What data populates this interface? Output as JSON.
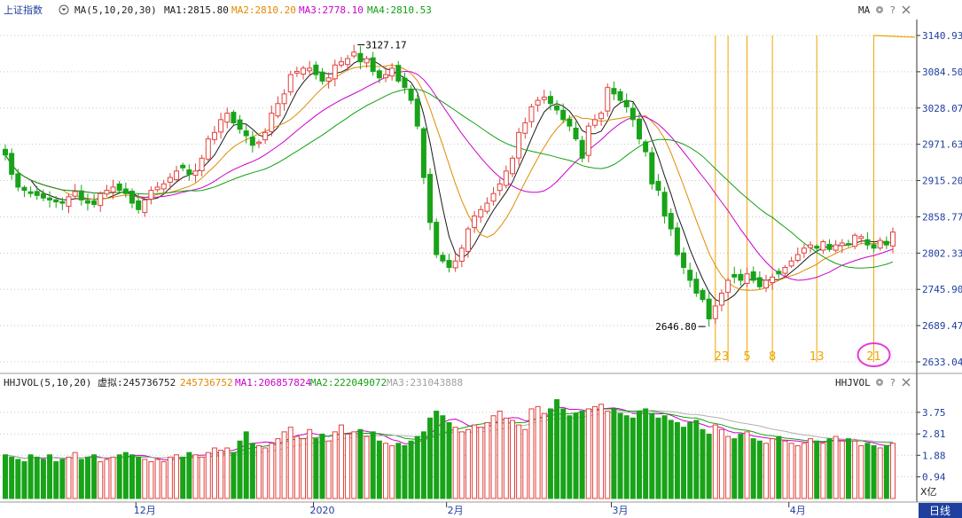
{
  "colors": {
    "up": "#e0413c",
    "down": "#18a318",
    "ma1": "#1a1a1a",
    "ma2": "#e08a00",
    "ma3": "#cc00cc",
    "ma4": "#14a014",
    "vma1": "#cc00cc",
    "vma2": "#14a014",
    "vma3": "#b0b0b0",
    "fib": "#f0a400",
    "grid": "#c8c8c8",
    "label": "#1f3f9f",
    "axis": "#333333",
    "highlight": "#e63ad6",
    "timeframe_bg": "#1f3f9f"
  },
  "header": {
    "index_name": "上证指数",
    "indicator": "MA(5,10,20,30)",
    "ma1": "MA1:2815.80",
    "ma2": "MA2:2810.20",
    "ma3": "MA3:2778.10",
    "ma4": "MA4:2810.53",
    "right_tag": "MA"
  },
  "vol_header": {
    "indicator": "HHJVOL(5,10,20)",
    "virtual_label": "虚拟:245736752",
    "virtual_value": "245736752",
    "ma1": "MA1:206857824",
    "ma2": "MA2:222049072",
    "ma3": "MA3:231043888",
    "right_tag": "HHJVOL"
  },
  "icons": [
    "dropdown-icon",
    "gear-icon",
    "question-icon",
    "close-icon"
  ],
  "timeframe": "日线",
  "unit": "X亿",
  "annotations": {
    "high": "3127.17",
    "low": "2646.80"
  },
  "fib_labels": [
    "23",
    "5",
    "8",
    "13",
    "21"
  ],
  "chart_data": [
    {
      "type": "candlestick",
      "title": "上证指数",
      "x_labels": [
        {
          "index": 22,
          "label": "12月"
        },
        {
          "index": 50,
          "label": "2020"
        },
        {
          "index": 71,
          "label": "2月"
        },
        {
          "index": 97,
          "label": "3月"
        },
        {
          "index": 125,
          "label": "4月"
        }
      ],
      "y_ticks": [
        3140.93,
        3084.5,
        3028.07,
        2971.63,
        2915.2,
        2858.77,
        2802.33,
        2745.9,
        2689.47,
        2633.04
      ],
      "ylim": [
        2633.04,
        3140.93
      ],
      "fib_line_indices": [
        112,
        114,
        117,
        121,
        128,
        137
      ],
      "fib_text_indices": [
        113,
        117,
        121,
        128,
        137
      ],
      "closes": [
        2955,
        2925,
        2905,
        2900,
        2895,
        2892,
        2888,
        2885,
        2882,
        2880,
        2890,
        2898,
        2885,
        2880,
        2878,
        2895,
        2900,
        2905,
        2900,
        2895,
        2880,
        2870,
        2885,
        2900,
        2905,
        2910,
        2920,
        2930,
        2935,
        2925,
        2930,
        2950,
        2980,
        2990,
        3010,
        3020,
        3005,
        2995,
        2985,
        2970,
        2975,
        2990,
        3020,
        3035,
        3050,
        3080,
        3085,
        3090,
        3090,
        3080,
        3070,
        3075,
        3095,
        3100,
        3105,
        3115,
        3100,
        3105,
        3085,
        3075,
        3080,
        3090,
        3070,
        3060,
        3040,
        3000,
        2920,
        2850,
        2800,
        2790,
        2780,
        2790,
        2810,
        2840,
        2860,
        2870,
        2880,
        2895,
        2910,
        2930,
        2950,
        2990,
        3005,
        3030,
        3040,
        3045,
        3035,
        3025,
        3010,
        3000,
        2980,
        2950,
        3000,
        3010,
        3020,
        3060,
        3050,
        3040,
        3030,
        3010,
        2980,
        2960,
        2910,
        2900,
        2860,
        2840,
        2800,
        2780,
        2760,
        2740,
        2730,
        2700,
        2720,
        2740,
        2760,
        2765,
        2760,
        2770,
        2760,
        2750,
        2760,
        2765,
        2770,
        2780,
        2790,
        2800,
        2810,
        2815,
        2810,
        2820,
        2808,
        2815,
        2818,
        2815,
        2830,
        2828,
        2815,
        2810,
        2822,
        2815,
        2835
      ]
    },
    {
      "type": "bar",
      "title": "HHJVOL(5,10,20)",
      "y_ticks": [
        3.75,
        2.81,
        1.88,
        0.94
      ],
      "ylim": [
        0,
        4.4
      ],
      "volumes": [
        1.9,
        1.8,
        1.7,
        1.6,
        1.9,
        1.8,
        1.7,
        1.9,
        1.6,
        1.7,
        1.8,
        2.0,
        1.7,
        1.8,
        1.9,
        1.6,
        1.7,
        1.8,
        1.9,
        2.0,
        1.9,
        1.8,
        1.7,
        1.6,
        1.7,
        1.6,
        1.8,
        1.9,
        1.8,
        2.0,
        1.9,
        1.8,
        2.0,
        2.2,
        2.1,
        2.2,
        2.0,
        2.5,
        2.9,
        2.4,
        2.3,
        2.2,
        2.4,
        2.6,
        2.9,
        3.1,
        2.7,
        2.6,
        3.0,
        2.6,
        2.8,
        2.5,
        2.9,
        3.2,
        2.8,
        2.9,
        3.0,
        2.7,
        2.9,
        2.5,
        2.4,
        2.3,
        2.4,
        2.3,
        2.5,
        2.7,
        2.9,
        3.5,
        3.8,
        3.6,
        3.3,
        3.1,
        2.9,
        3.0,
        3.2,
        3.1,
        3.3,
        3.6,
        3.8,
        3.5,
        3.4,
        3.2,
        3.0,
        3.9,
        4.0,
        3.7,
        3.9,
        4.3,
        3.9,
        3.6,
        3.7,
        3.8,
        3.9,
        4.0,
        4.1,
        3.8,
        3.9,
        3.7,
        3.6,
        3.5,
        3.8,
        3.9,
        3.7,
        3.5,
        3.6,
        3.4,
        3.3,
        3.1,
        3.3,
        3.4,
        3.0,
        2.8,
        3.2,
        3.0,
        2.7,
        2.6,
        2.8,
        2.9,
        2.6,
        2.5,
        2.4,
        2.6,
        2.7,
        2.5,
        2.4,
        2.3,
        2.4,
        2.6,
        2.5,
        2.4,
        2.6,
        2.7,
        2.5,
        2.6,
        2.5,
        2.3,
        2.4,
        2.3,
        2.2,
        2.3,
        2.4
      ]
    }
  ]
}
